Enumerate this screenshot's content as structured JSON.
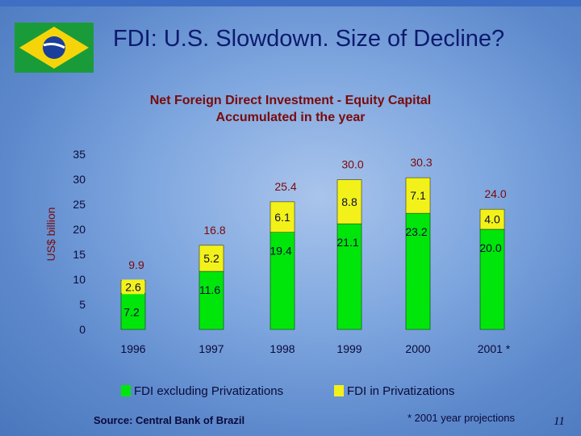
{
  "slide": {
    "title": "FDI: U.S. Slowdown. Size of Decline?",
    "source": "Source: Central Bank of Brazil",
    "footnote": "* 2001 year projections",
    "page_number": "11"
  },
  "colors": {
    "excl_privatizations": "#00e60a",
    "privatizations": "#f2f21a",
    "axis_text": "#0a0a3a",
    "total_label": "#7a0a0a",
    "title": "#0d1a6e"
  },
  "chart_data": {
    "type": "bar",
    "stacked": true,
    "title": [
      "Net Foreign Direct Investment - Equity Capital",
      "Accumulated in the year"
    ],
    "ylabel": "US$ billion",
    "xlabel": "",
    "ylim": [
      0,
      35
    ],
    "yticks": [
      "0",
      "5",
      "10",
      "15",
      "20",
      "25",
      "30",
      "35"
    ],
    "categories": [
      "1996",
      "1997",
      "1998",
      "1999",
      "2000",
      "2001 *"
    ],
    "series": [
      {
        "name": "FDI excluding Privatizations",
        "values": [
          7.2,
          11.6,
          19.4,
          21.1,
          23.2,
          20.0
        ],
        "labels": [
          "7.2",
          "11.6",
          "19.4",
          "21.1",
          "23.2",
          "20.0"
        ],
        "color": "#00e60a"
      },
      {
        "name": "FDI in Privatizations",
        "values": [
          2.6,
          5.2,
          6.1,
          8.8,
          7.1,
          4.0
        ],
        "labels": [
          "2.6",
          "5.2",
          "6.1",
          "8.8",
          "7.1",
          "4.0"
        ],
        "color": "#f2f21a"
      }
    ],
    "totals": [
      9.9,
      16.8,
      25.4,
      30.0,
      30.3,
      24.0
    ],
    "total_labels": [
      "9.9",
      "16.8",
      "25.4",
      "30.0",
      "30.3",
      "24.0"
    ]
  }
}
